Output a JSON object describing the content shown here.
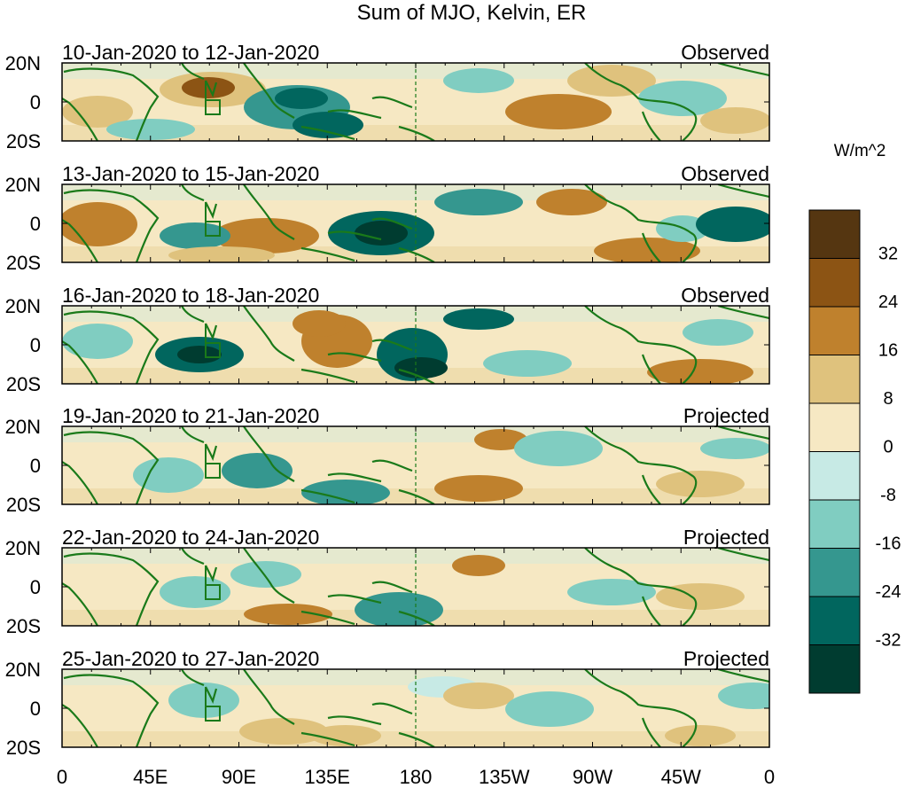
{
  "title": "Sum of MJO, Kelvin, ER",
  "units": "W/m^2",
  "latitude_labels": [
    "20N",
    "0",
    "20S"
  ],
  "longitude_labels": [
    "0",
    "45E",
    "90E",
    "135E",
    "180",
    "135W",
    "90W",
    "45W",
    "0"
  ],
  "panels": [
    {
      "period": "10-Jan-2020 to 12-Jan-2020",
      "status": "Observed"
    },
    {
      "period": "13-Jan-2020 to 15-Jan-2020",
      "status": "Observed"
    },
    {
      "period": "16-Jan-2020 to 18-Jan-2020",
      "status": "Observed"
    },
    {
      "period": "19-Jan-2020 to 21-Jan-2020",
      "status": "Projected"
    },
    {
      "period": "22-Jan-2020 to 24-Jan-2020",
      "status": "Projected"
    },
    {
      "period": "25-Jan-2020 to 27-Jan-2020",
      "status": "Projected"
    }
  ],
  "colorbar": {
    "tick_labels": [
      "32",
      "24",
      "16",
      "8",
      "0",
      "-8",
      "-16",
      "-24",
      "-32"
    ],
    "colors": [
      "#553611",
      "#8c5414",
      "#bf812d",
      "#dfc27d",
      "#f6e8c3",
      "#c7eae5",
      "#80cdc1",
      "#35978f",
      "#01665e",
      "#003c30"
    ]
  },
  "colors": {
    "land_outline": "#1a7a1a",
    "frame": "#000000"
  }
}
